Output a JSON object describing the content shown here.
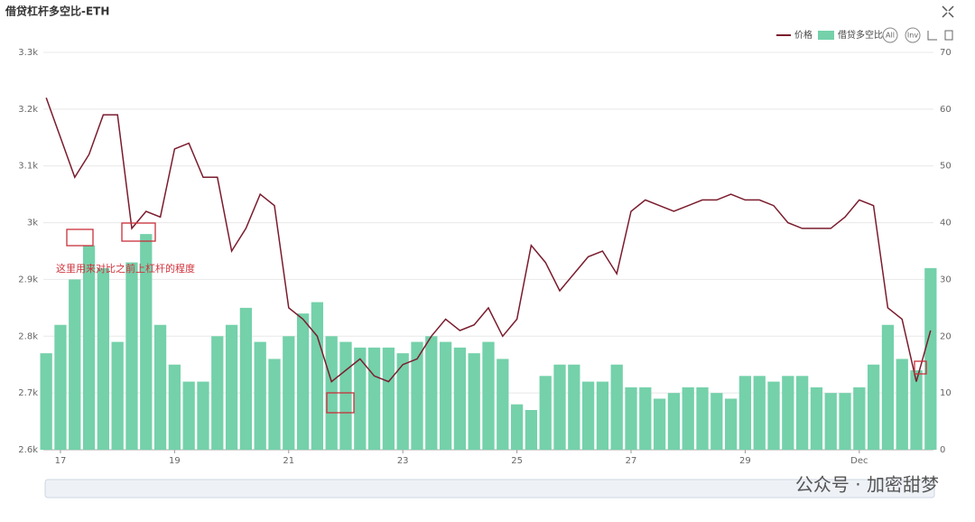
{
  "chart_data": {
    "type": "combo",
    "title": "借贷杠杆多空比-ETH",
    "annotation": "这里用来对比之前上杠杆的程度",
    "watermark": "公众号 · 加密甜梦",
    "controls": [
      "All",
      "Inv"
    ],
    "x": [
      16.75,
      17,
      17.25,
      17.5,
      17.75,
      18,
      18.25,
      18.5,
      18.75,
      19,
      19.25,
      19.5,
      19.75,
      20,
      20.25,
      20.5,
      20.75,
      21,
      21.25,
      21.5,
      21.75,
      22,
      22.25,
      22.5,
      22.75,
      23,
      23.25,
      23.5,
      23.75,
      24,
      24.25,
      24.5,
      24.75,
      25,
      25.25,
      25.5,
      25.75,
      26,
      26.25,
      26.5,
      26.75,
      27,
      27.25,
      27.5,
      27.75,
      28,
      28.25,
      28.5,
      28.75,
      29,
      29.25,
      29.5,
      29.75,
      30,
      30.25,
      30.5,
      30.75,
      31,
      31.25,
      31.5,
      31.75,
      32,
      32.25
    ],
    "xlim": [
      16.7,
      32.3
    ],
    "xticks": [
      17,
      19,
      21,
      23,
      25,
      27,
      29,
      {
        "value": 31,
        "label": "Dec"
      }
    ],
    "ylim": [
      2600,
      3300
    ],
    "yticks": [
      {
        "value": 2600,
        "label": "2.6k"
      },
      {
        "value": 2700,
        "label": "2.7k"
      },
      {
        "value": 2800,
        "label": "2.8k"
      },
      {
        "value": 2900,
        "label": "2.9k"
      },
      {
        "value": 3000,
        "label": "3k"
      },
      {
        "value": 3100,
        "label": "3.1k"
      },
      {
        "value": 3200,
        "label": "3.2k"
      },
      {
        "value": 3300,
        "label": "3.3k"
      }
    ],
    "y2lim": [
      0,
      70
    ],
    "y2ticks": [
      0,
      10,
      20,
      30,
      40,
      50,
      60,
      70
    ],
    "grid": true,
    "legend": "top-right",
    "series": [
      {
        "name": "价格",
        "type": "line",
        "color": "#7a1c2e",
        "values": [
          3220,
          3150,
          3080,
          3120,
          3190,
          3190,
          2990,
          3020,
          3010,
          3130,
          3140,
          3080,
          3080,
          2950,
          2990,
          3050,
          3030,
          2850,
          2830,
          2800,
          2720,
          2740,
          2760,
          2730,
          2720,
          2750,
          2760,
          2800,
          2830,
          2810,
          2820,
          2850,
          2800,
          2830,
          2960,
          2930,
          2880,
          2910,
          2940,
          2950,
          2910,
          3020,
          3040,
          3030,
          3020,
          3030,
          3040,
          3040,
          3050,
          3040,
          3040,
          3030,
          3000,
          2990,
          2990,
          2990,
          3010,
          3040,
          3030,
          2850,
          2830,
          2720,
          2810
        ]
      },
      {
        "name": "借贷多空比",
        "type": "bar",
        "axis": "y2",
        "color": "#74d1aa",
        "values": [
          17,
          22,
          30,
          36,
          32,
          19,
          33,
          38,
          22,
          15,
          12,
          12,
          20,
          22,
          25,
          19,
          16,
          20,
          24,
          26,
          20,
          19,
          18,
          18,
          18,
          17,
          19,
          20,
          19,
          18,
          17,
          19,
          16,
          8,
          7,
          13,
          15,
          15,
          12,
          12,
          15,
          11,
          11,
          9,
          10,
          11,
          11,
          10,
          9,
          13,
          13,
          12,
          13,
          13,
          11,
          10,
          10,
          11,
          15,
          22,
          16,
          14,
          32
        ]
      }
    ]
  }
}
